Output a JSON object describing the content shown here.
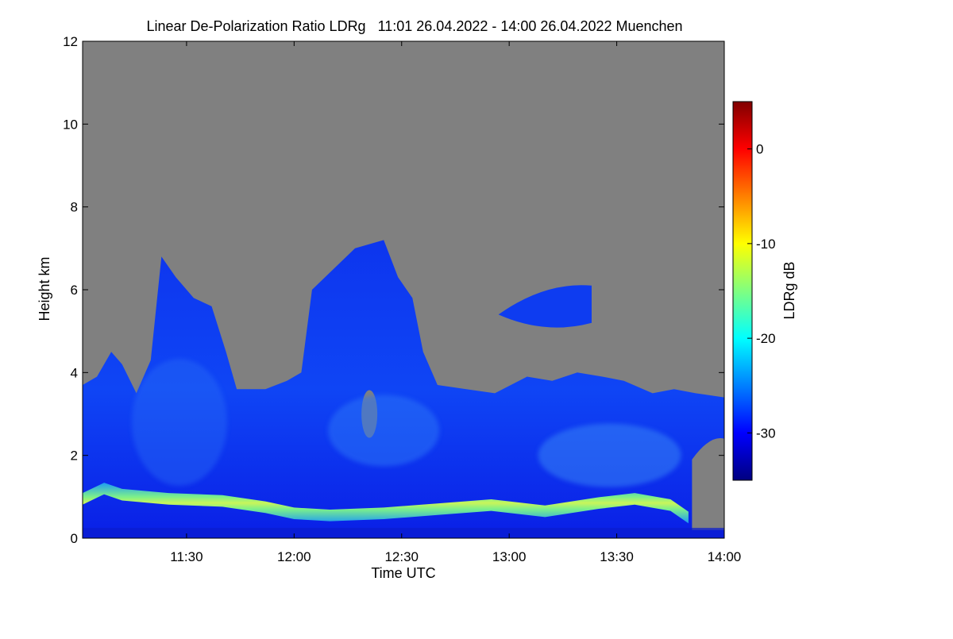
{
  "chart_data": {
    "type": "heatmap",
    "title": "Linear De-Polarization Ratio LDRg   11:01 26.04.2022 - 14:00 26.04.2022 Muenchen",
    "xlabel": "Time UTC",
    "ylabel": "Height km",
    "x_range_minutes_utc": [
      661,
      840
    ],
    "x_ticks": [
      {
        "label": "11:30",
        "minutes": 690
      },
      {
        "label": "12:00",
        "minutes": 720
      },
      {
        "label": "12:30",
        "minutes": 750
      },
      {
        "label": "13:00",
        "minutes": 780
      },
      {
        "label": "13:30",
        "minutes": 810
      },
      {
        "label": "14:00",
        "minutes": 840
      }
    ],
    "ylim": [
      0,
      12
    ],
    "y_ticks": [
      "0",
      "2",
      "4",
      "6",
      "8",
      "10",
      "12"
    ],
    "colorbar": {
      "label": "LDRg dB",
      "range": [
        -35,
        5
      ],
      "ticks": [
        "0",
        "-10",
        "-20",
        "-30"
      ],
      "colormap": "jet"
    },
    "no_data_color": "#808080",
    "cloud_top_profile_km": [
      {
        "t": 661,
        "h": 3.7
      },
      {
        "t": 665,
        "h": 3.9
      },
      {
        "t": 669,
        "h": 4.5
      },
      {
        "t": 672,
        "h": 4.2
      },
      {
        "t": 676,
        "h": 3.5
      },
      {
        "t": 680,
        "h": 4.3
      },
      {
        "t": 683,
        "h": 6.8
      },
      {
        "t": 687,
        "h": 6.3
      },
      {
        "t": 692,
        "h": 5.8
      },
      {
        "t": 697,
        "h": 5.6
      },
      {
        "t": 701,
        "h": 4.5
      },
      {
        "t": 704,
        "h": 3.6
      },
      {
        "t": 712,
        "h": 3.6
      },
      {
        "t": 718,
        "h": 3.8
      },
      {
        "t": 722,
        "h": 4.0
      },
      {
        "t": 725,
        "h": 6.0
      },
      {
        "t": 731,
        "h": 6.5
      },
      {
        "t": 737,
        "h": 7.0
      },
      {
        "t": 745,
        "h": 7.2
      },
      {
        "t": 749,
        "h": 6.3
      },
      {
        "t": 753,
        "h": 5.8
      },
      {
        "t": 756,
        "h": 4.5
      },
      {
        "t": 760,
        "h": 3.7
      },
      {
        "t": 768,
        "h": 3.6
      },
      {
        "t": 776,
        "h": 3.5
      },
      {
        "t": 785,
        "h": 3.9
      },
      {
        "t": 792,
        "h": 3.8
      },
      {
        "t": 799,
        "h": 4.0
      },
      {
        "t": 806,
        "h": 3.9
      },
      {
        "t": 812,
        "h": 3.8
      },
      {
        "t": 820,
        "h": 3.5
      },
      {
        "t": 826,
        "h": 3.6
      },
      {
        "t": 832,
        "h": 3.5
      },
      {
        "t": 840,
        "h": 3.4
      }
    ],
    "upper_cloud_km": {
      "t_start": 777,
      "t_end": 803,
      "bottom": 4.9,
      "top": 6.2
    },
    "boundary_layer_band_km": [
      {
        "t": 661,
        "h": 0.95
      },
      {
        "t": 667,
        "h": 1.2
      },
      {
        "t": 672,
        "h": 1.05
      },
      {
        "t": 685,
        "h": 0.95
      },
      {
        "t": 700,
        "h": 0.9
      },
      {
        "t": 712,
        "h": 0.75
      },
      {
        "t": 720,
        "h": 0.6
      },
      {
        "t": 730,
        "h": 0.55
      },
      {
        "t": 745,
        "h": 0.6
      },
      {
        "t": 760,
        "h": 0.7
      },
      {
        "t": 775,
        "h": 0.8
      },
      {
        "t": 790,
        "h": 0.65
      },
      {
        "t": 805,
        "h": 0.85
      },
      {
        "t": 815,
        "h": 0.95
      },
      {
        "t": 825,
        "h": 0.8
      },
      {
        "t": 830,
        "h": 0.5
      }
    ]
  }
}
